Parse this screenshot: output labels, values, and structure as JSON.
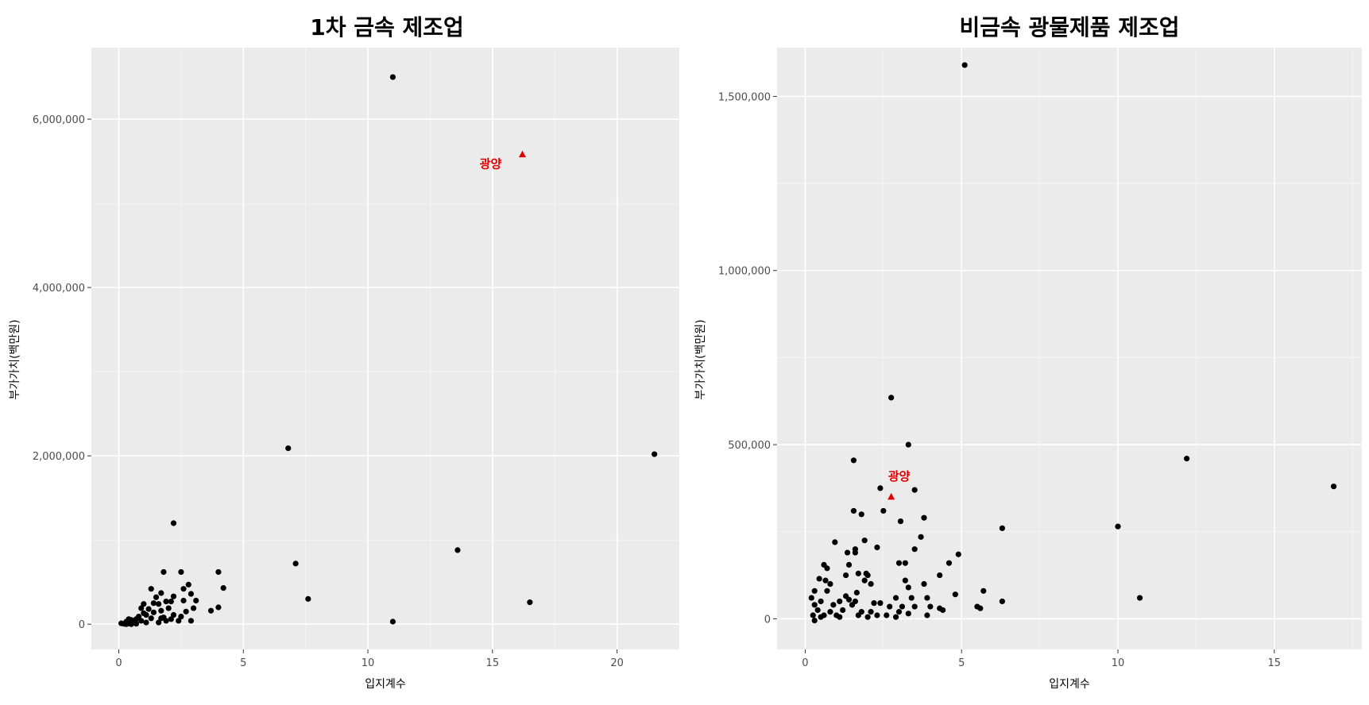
{
  "chart_data": [
    {
      "type": "scatter",
      "title": "1차 금속 제조업",
      "xlabel": "입지계수",
      "ylabel": "부가가치(백만원)",
      "xlim": [
        -1.1,
        22.5
      ],
      "ylim": [
        -300000,
        6850000
      ],
      "xticks": [
        0,
        5,
        10,
        15,
        20
      ],
      "xtick_labels": [
        "0",
        "5",
        "10",
        "15",
        "20"
      ],
      "yticks": [
        0,
        2000000,
        4000000,
        6000000
      ],
      "ytick_labels": [
        "0",
        "2,000,000",
        "4,000,000",
        "6,000,000"
      ],
      "grid": true,
      "highlight": {
        "label": "광양",
        "x": 16.2,
        "y": 5580000,
        "color": "#e00000",
        "marker": "triangle"
      },
      "points": [
        [
          11.0,
          6500000
        ],
        [
          6.8,
          2090000
        ],
        [
          21.5,
          2020000
        ],
        [
          2.2,
          1200000
        ],
        [
          13.6,
          880000
        ],
        [
          7.1,
          720000
        ],
        [
          7.6,
          300000
        ],
        [
          16.5,
          260000
        ],
        [
          11.0,
          30000
        ],
        [
          4.2,
          430000
        ],
        [
          4.0,
          620000
        ],
        [
          4.0,
          200000
        ],
        [
          3.7,
          160000
        ],
        [
          3.1,
          280000
        ],
        [
          3.0,
          190000
        ],
        [
          2.9,
          360000
        ],
        [
          2.8,
          470000
        ],
        [
          2.9,
          40000
        ],
        [
          2.6,
          420000
        ],
        [
          2.5,
          620000
        ],
        [
          2.6,
          280000
        ],
        [
          2.7,
          150000
        ],
        [
          2.5,
          90000
        ],
        [
          2.2,
          330000
        ],
        [
          2.1,
          270000
        ],
        [
          2.0,
          190000
        ],
        [
          2.2,
          110000
        ],
        [
          2.1,
          60000
        ],
        [
          1.8,
          620000
        ],
        [
          1.7,
          370000
        ],
        [
          1.9,
          270000
        ],
        [
          1.6,
          240000
        ],
        [
          1.7,
          160000
        ],
        [
          1.8,
          80000
        ],
        [
          1.9,
          40000
        ],
        [
          1.5,
          320000
        ],
        [
          1.4,
          250000
        ],
        [
          1.3,
          420000
        ],
        [
          1.4,
          140000
        ],
        [
          1.3,
          70000
        ],
        [
          1.6,
          20000
        ],
        [
          1.2,
          180000
        ],
        [
          1.1,
          110000
        ],
        [
          1.0,
          240000
        ],
        [
          0.9,
          190000
        ],
        [
          0.8,
          90000
        ],
        [
          0.9,
          40000
        ],
        [
          1.0,
          130000
        ],
        [
          0.7,
          60000
        ],
        [
          0.6,
          20000
        ],
        [
          0.5,
          50000
        ],
        [
          0.4,
          10000
        ],
        [
          0.3,
          30000
        ],
        [
          0.2,
          5000
        ],
        [
          0.3,
          0
        ],
        [
          0.5,
          0
        ],
        [
          0.7,
          5000
        ],
        [
          0.4,
          60000
        ],
        [
          1.1,
          20000
        ],
        [
          1.7,
          70000
        ],
        [
          2.4,
          40000
        ],
        [
          0.1,
          10000
        ]
      ]
    },
    {
      "type": "scatter",
      "title": "비금속 광물제품 제조업",
      "xlabel": "입지계수",
      "ylabel": "부가가치(백만원)",
      "xlim": [
        -0.9,
        17.8
      ],
      "ylim": [
        -88000,
        1640000
      ],
      "xticks": [
        0,
        5,
        10,
        15
      ],
      "xtick_labels": [
        "0",
        "5",
        "10",
        "15"
      ],
      "yticks": [
        0,
        500000,
        1000000,
        1500000
      ],
      "ytick_labels": [
        "0",
        "500,000",
        "1,000,000",
        "1,500,000"
      ],
      "grid": true,
      "highlight": {
        "label": "광양",
        "x": 2.75,
        "y": 350000,
        "color": "#e00000",
        "marker": "triangle"
      },
      "points": [
        [
          5.1,
          1590000
        ],
        [
          2.75,
          635000
        ],
        [
          3.3,
          500000
        ],
        [
          1.55,
          455000
        ],
        [
          12.2,
          460000
        ],
        [
          16.9,
          380000
        ],
        [
          2.4,
          375000
        ],
        [
          3.5,
          370000
        ],
        [
          1.55,
          310000
        ],
        [
          1.8,
          300000
        ],
        [
          2.5,
          310000
        ],
        [
          3.8,
          290000
        ],
        [
          3.05,
          280000
        ],
        [
          6.3,
          260000
        ],
        [
          10.0,
          265000
        ],
        [
          3.7,
          235000
        ],
        [
          1.9,
          225000
        ],
        [
          2.3,
          205000
        ],
        [
          1.6,
          200000
        ],
        [
          0.95,
          220000
        ],
        [
          3.5,
          200000
        ],
        [
          1.6,
          190000
        ],
        [
          4.9,
          185000
        ],
        [
          1.35,
          190000
        ],
        [
          3.0,
          160000
        ],
        [
          3.2,
          160000
        ],
        [
          4.6,
          160000
        ],
        [
          1.4,
          155000
        ],
        [
          0.6,
          155000
        ],
        [
          0.7,
          145000
        ],
        [
          1.7,
          130000
        ],
        [
          1.95,
          130000
        ],
        [
          4.3,
          125000
        ],
        [
          2.0,
          125000
        ],
        [
          1.3,
          125000
        ],
        [
          0.45,
          115000
        ],
        [
          0.65,
          110000
        ],
        [
          1.9,
          110000
        ],
        [
          2.1,
          100000
        ],
        [
          3.2,
          110000
        ],
        [
          3.3,
          90000
        ],
        [
          3.8,
          100000
        ],
        [
          0.8,
          100000
        ],
        [
          0.3,
          80000
        ],
        [
          0.7,
          80000
        ],
        [
          5.7,
          80000
        ],
        [
          1.65,
          75000
        ],
        [
          0.2,
          60000
        ],
        [
          1.3,
          65000
        ],
        [
          2.9,
          60000
        ],
        [
          3.4,
          60000
        ],
        [
          3.9,
          60000
        ],
        [
          4.8,
          70000
        ],
        [
          1.4,
          55000
        ],
        [
          0.5,
          50000
        ],
        [
          1.1,
          50000
        ],
        [
          1.6,
          50000
        ],
        [
          2.2,
          45000
        ],
        [
          2.4,
          45000
        ],
        [
          6.3,
          50000
        ],
        [
          10.7,
          60000
        ],
        [
          0.3,
          40000
        ],
        [
          0.9,
          40000
        ],
        [
          1.5,
          40000
        ],
        [
          2.7,
          35000
        ],
        [
          3.1,
          35000
        ],
        [
          3.5,
          35000
        ],
        [
          4.0,
          35000
        ],
        [
          4.3,
          30000
        ],
        [
          5.6,
          30000
        ],
        [
          0.4,
          25000
        ],
        [
          0.8,
          20000
        ],
        [
          1.2,
          25000
        ],
        [
          1.8,
          20000
        ],
        [
          2.1,
          20000
        ],
        [
          3.0,
          20000
        ],
        [
          4.4,
          25000
        ],
        [
          5.5,
          35000
        ],
        [
          0.25,
          10000
        ],
        [
          0.6,
          10000
        ],
        [
          1.0,
          10000
        ],
        [
          1.7,
          10000
        ],
        [
          2.3,
          10000
        ],
        [
          2.6,
          10000
        ],
        [
          3.3,
          15000
        ],
        [
          3.9,
          10000
        ],
        [
          0.3,
          -5000
        ],
        [
          0.5,
          5000
        ],
        [
          1.1,
          5000
        ],
        [
          2.0,
          5000
        ],
        [
          2.9,
          5000
        ]
      ]
    }
  ]
}
